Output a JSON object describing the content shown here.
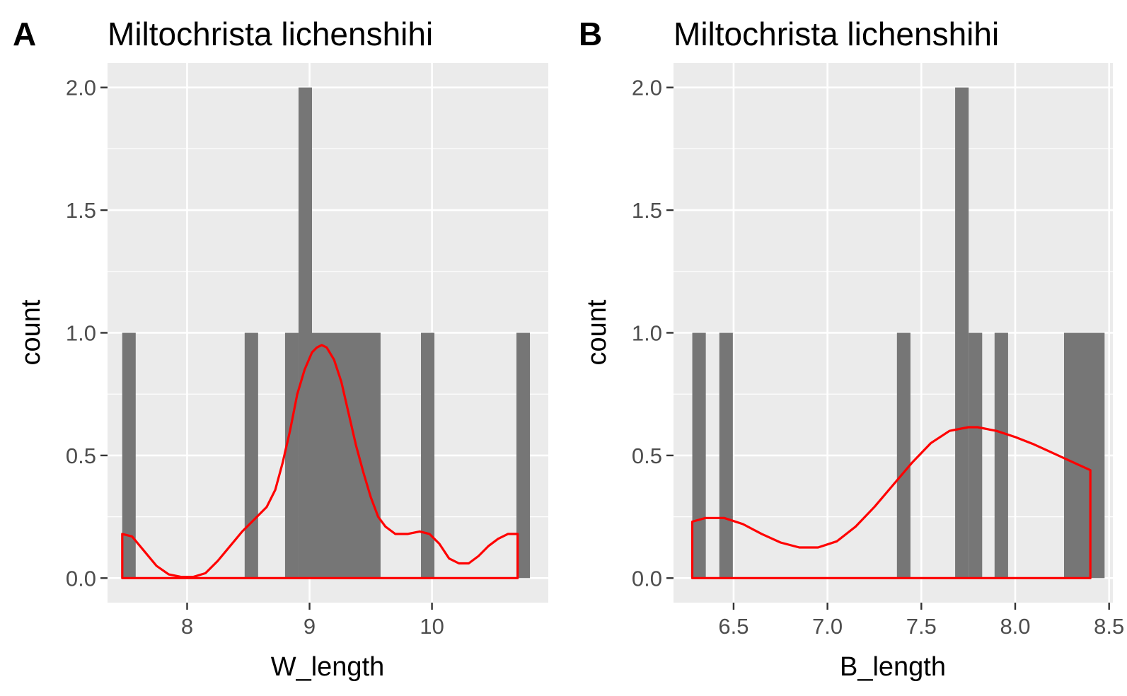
{
  "figure": {
    "panels": [
      {
        "tag": "A",
        "title": "Miltochrista lichenshihi"
      },
      {
        "tag": "B",
        "title": "Miltochrista lichenshihi"
      }
    ]
  },
  "colors": {
    "panel_background": "#ebebeb",
    "grid": "#ffffff",
    "bars": "#767676",
    "density_line": "#ff0000",
    "tick_text": "#4d4d4d"
  },
  "chart_data": [
    {
      "type": "bar",
      "subtype": "histogram with density overlay",
      "title": "Miltochrista lichenshihi",
      "xlabel": "W_length",
      "ylabel": "count",
      "xlim": [
        7.35,
        10.95
      ],
      "ylim": [
        -0.1,
        2.1
      ],
      "x_ticks": [
        8,
        9,
        10
      ],
      "x_tick_labels": [
        "8",
        "9",
        "10"
      ],
      "y_ticks": [
        0,
        0.5,
        1,
        1.5,
        2
      ],
      "y_tick_labels": [
        "0.0",
        "0.5",
        "1.0",
        "1.5",
        "2.0"
      ],
      "grid": true,
      "bin_width": 0.11,
      "bins": [
        {
          "x0": 7.47,
          "x1": 7.58,
          "count": 1
        },
        {
          "x0": 8.47,
          "x1": 8.58,
          "count": 1
        },
        {
          "x0": 8.8,
          "x1": 8.91,
          "count": 1
        },
        {
          "x0": 8.91,
          "x1": 9.02,
          "count": 2
        },
        {
          "x0": 9.02,
          "x1": 9.58,
          "count": 1
        },
        {
          "x0": 9.91,
          "x1": 10.02,
          "count": 1
        },
        {
          "x0": 10.69,
          "x1": 10.8,
          "count": 1
        }
      ],
      "density": {
        "x": [
          7.47,
          7.55,
          7.65,
          7.75,
          7.85,
          7.95,
          8.05,
          8.15,
          8.25,
          8.35,
          8.45,
          8.55,
          8.65,
          8.72,
          8.78,
          8.84,
          8.9,
          8.96,
          9.02,
          9.06,
          9.1,
          9.14,
          9.2,
          9.26,
          9.32,
          9.38,
          9.44,
          9.5,
          9.56,
          9.62,
          9.7,
          9.8,
          9.9,
          9.98,
          10.06,
          10.14,
          10.22,
          10.3,
          10.38,
          10.46,
          10.54,
          10.62,
          10.7
        ],
        "y": [
          0.18,
          0.17,
          0.11,
          0.05,
          0.015,
          0.005,
          0.005,
          0.02,
          0.07,
          0.13,
          0.19,
          0.24,
          0.29,
          0.36,
          0.47,
          0.6,
          0.75,
          0.85,
          0.92,
          0.94,
          0.95,
          0.94,
          0.89,
          0.8,
          0.67,
          0.54,
          0.43,
          0.33,
          0.25,
          0.21,
          0.18,
          0.18,
          0.19,
          0.18,
          0.14,
          0.08,
          0.06,
          0.06,
          0.09,
          0.13,
          0.16,
          0.18,
          0.18
        ]
      }
    },
    {
      "type": "bar",
      "subtype": "histogram with density overlay",
      "title": "Miltochrista lichenshihi",
      "xlabel": "B_length",
      "ylabel": "count",
      "xlim": [
        6.18,
        8.52
      ],
      "ylim": [
        -0.1,
        2.1
      ],
      "x_ticks": [
        6.5,
        7.0,
        7.5,
        8.0,
        8.5
      ],
      "x_tick_labels": [
        "6.5",
        "7.0",
        "7.5",
        "8.0",
        "8.5"
      ],
      "y_ticks": [
        0,
        0.5,
        1,
        1.5,
        2
      ],
      "y_tick_labels": [
        "0.0",
        "0.5",
        "1.0",
        "1.5",
        "2.0"
      ],
      "grid": true,
      "bin_width": 0.072,
      "bins": [
        {
          "x0": 6.28,
          "x1": 6.352,
          "count": 1
        },
        {
          "x0": 6.424,
          "x1": 6.496,
          "count": 1
        },
        {
          "x0": 7.37,
          "x1": 7.442,
          "count": 1
        },
        {
          "x0": 7.68,
          "x1": 7.752,
          "count": 2
        },
        {
          "x0": 7.752,
          "x1": 7.824,
          "count": 1
        },
        {
          "x0": 7.89,
          "x1": 7.962,
          "count": 1
        },
        {
          "x0": 8.26,
          "x1": 8.476,
          "count": 1
        }
      ],
      "density": {
        "x": [
          6.28,
          6.35,
          6.45,
          6.55,
          6.65,
          6.75,
          6.85,
          6.95,
          7.05,
          7.15,
          7.25,
          7.35,
          7.45,
          7.55,
          7.65,
          7.75,
          7.8,
          7.9,
          8.0,
          8.1,
          8.2,
          8.3,
          8.4
        ],
        "y": [
          0.23,
          0.245,
          0.245,
          0.22,
          0.18,
          0.145,
          0.125,
          0.125,
          0.15,
          0.21,
          0.29,
          0.38,
          0.47,
          0.55,
          0.6,
          0.615,
          0.615,
          0.6,
          0.575,
          0.545,
          0.51,
          0.475,
          0.44
        ]
      }
    }
  ]
}
